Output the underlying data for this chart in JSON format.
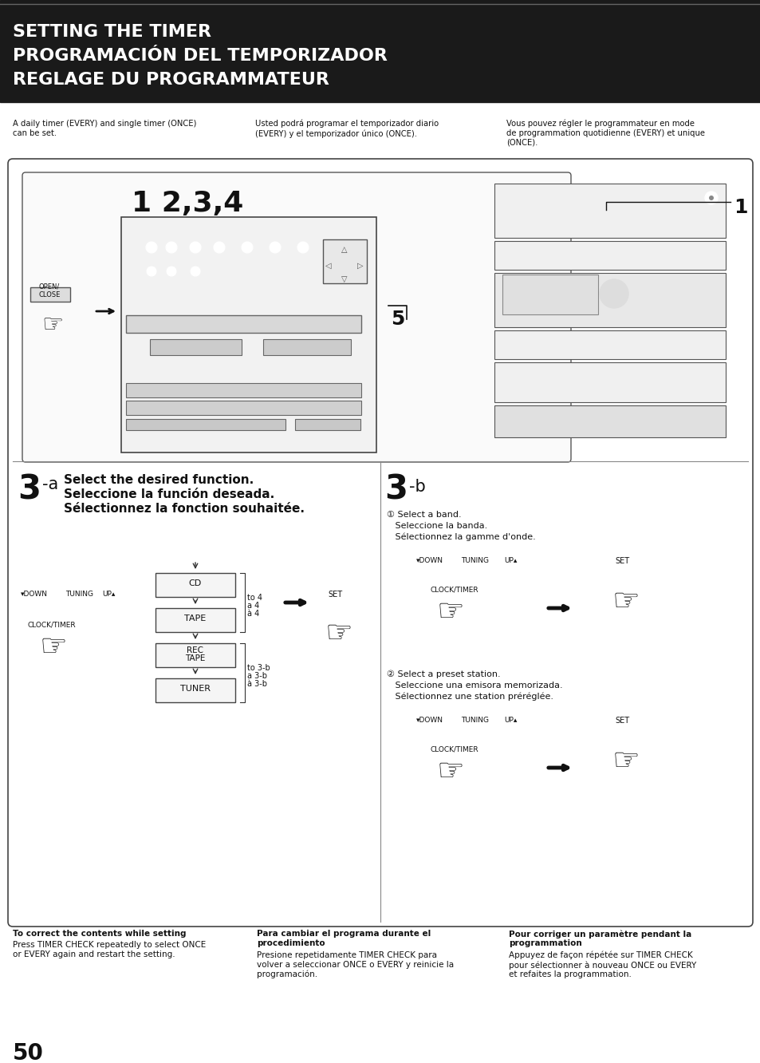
{
  "page_number": "50",
  "bg_color": "#ffffff",
  "header_bg": "#1a1a1a",
  "header_text_color": "#ffffff",
  "header_lines": [
    "SETTING THE TIMER",
    "PROGRAMACIÓN DEL TEMPORIZADOR",
    "REGLAGE DU PROGRAMMATEUR"
  ],
  "header_fontsize": 16,
  "intro_col1": "A daily timer (EVERY) and single timer (ONCE)\ncan be set.",
  "intro_col2": "Usted podrá programar el temporizador diario\n(EVERY) y el temporizador único (ONCE).",
  "intro_col3": "Vous pouvez régler le programmateur en mode\nde programmation quotidienne (EVERY) et unique\n(ONCE).",
  "step3a_lines": [
    "Select the desired function.",
    "Seleccione la función deseada.",
    "Sélectionnez la fonction souhaitée."
  ],
  "step3b_sel1_lines": [
    "① Select a band.",
    "   Seleccione la banda.",
    "   Sélectionnez la gamme d'onde."
  ],
  "step3b_sel2_lines": [
    "② Select a preset station.",
    "   Seleccione una emisora memorizada.",
    "   Sélectionnez une station préréglée."
  ],
  "footer_col1_title": "To correct the contents while setting",
  "footer_col1_body": "Press TIMER CHECK repeatedly to select ONCE\nor EVERY again and restart the setting.",
  "footer_col2_title": "Para cambiar el programa durante el\nprocedimiento",
  "footer_col2_body": "Presione repetidamente TIMER CHECK para\nvolver a seleccionar ONCE o EVERY y reinicie la\nprogramación.",
  "footer_col3_title": "Pour corriger un paramètre pendant la\nprogrammation",
  "footer_col3_body": "Appuyez de façon répétée sur TIMER CHECK\npour sélectionner à nouveau ONCE ou EVERY\net refaites la programmation."
}
